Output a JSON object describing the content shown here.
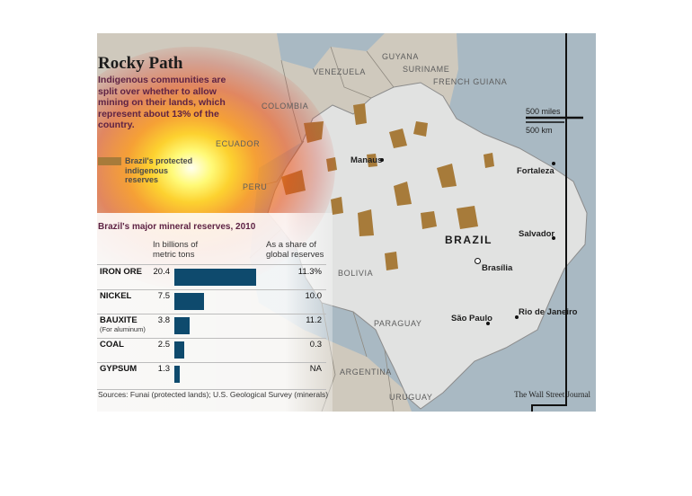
{
  "title": "Rocky Path",
  "subtitle": "Indigenous communities are split over whether to allow mining on their lands, which represent about 13% of the country.",
  "legend": "Brazil's protected indigenous reserves",
  "colors": {
    "reserves": "#a77b3a",
    "bars": "#0e4a6d",
    "ocean": "#a9b9c3",
    "brazil": "#e1e2e1",
    "neighbors": "#cfc9bd",
    "headline": "#5e2344"
  },
  "map_labels": {
    "countries": {
      "guyana": "GUYANA",
      "suriname": "SURINAME",
      "french_guiana": "FRENCH GUIANA",
      "venezuela": "VENEZUELA",
      "colombia": "COLOMBIA",
      "ecuador": "ECUADOR",
      "peru": "PERU",
      "bolivia": "BOLIVIA",
      "paraguay": "PARAGUAY",
      "argentina": "ARGENTINA",
      "uruguay": "URUGUAY"
    },
    "country_main": "BRAZIL",
    "cities": {
      "manaus": "Manaus",
      "fortaleza": "Fortaleza",
      "salvador": "Salvador",
      "brasilia": "Brasília",
      "sao_paulo": "São Paulo",
      "rio": "Rio de Janeiro"
    },
    "scale": {
      "miles": "500 miles",
      "km": "500 km"
    }
  },
  "chart_data": {
    "type": "bar",
    "title": "Brazil's major mineral reserves, 2010",
    "value_header": "In billions of metric tons",
    "share_header": "As a share of global reserves",
    "categories": [
      "IRON ORE",
      "NICKEL",
      "BAUXITE",
      "COAL",
      "GYPSUM"
    ],
    "category_notes": [
      "",
      "",
      "(For aluminum)",
      "",
      ""
    ],
    "values": [
      20.4,
      7.5,
      3.8,
      2.5,
      1.3
    ],
    "value_labels": [
      "20.4",
      "7.5",
      "3.8",
      "2.5",
      "1.3"
    ],
    "shares": [
      "11.3%",
      "10.0",
      "11.2",
      "0.3",
      "NA"
    ],
    "unit": "billions of metric tons"
  },
  "sources": "Sources: Funai (protected lands); U.S. Geological Survey (minerals)",
  "credit": "The Wall Street Journal"
}
